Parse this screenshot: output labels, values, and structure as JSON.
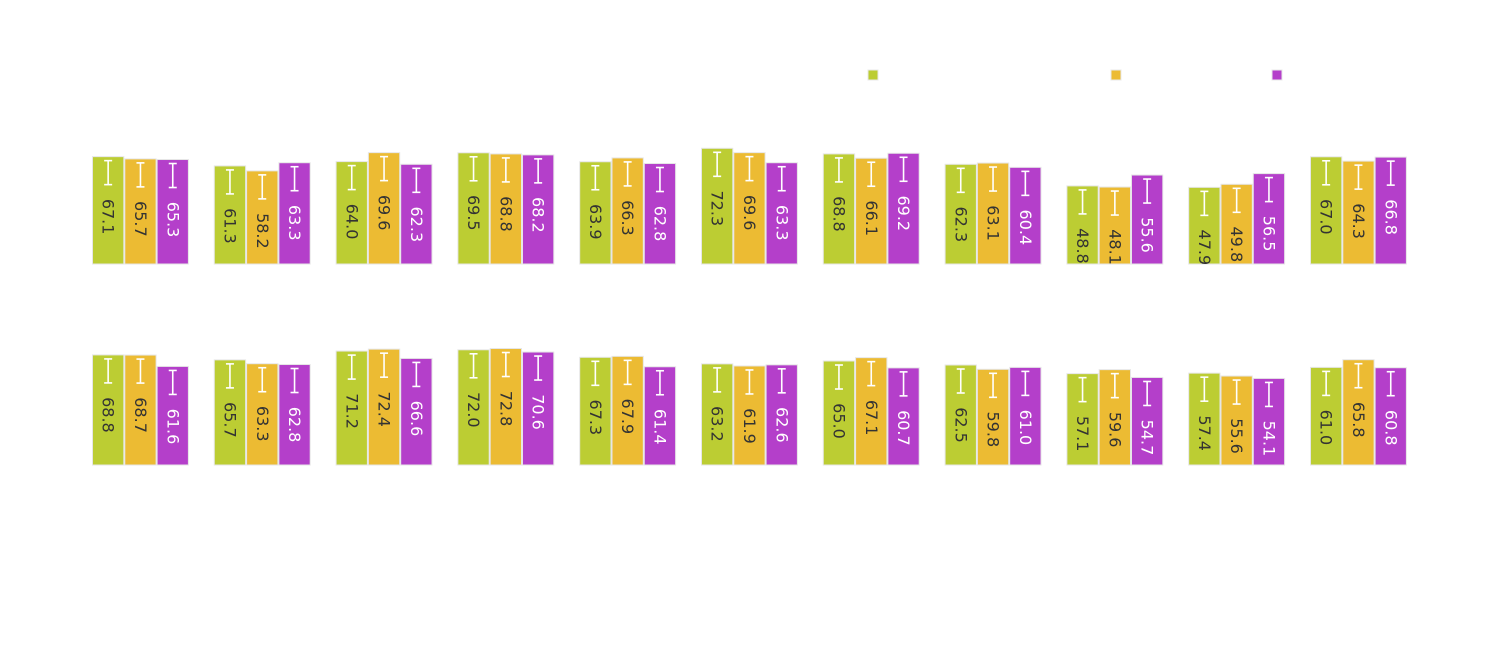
{
  "chart_data": {
    "type": "bar",
    "title": "",
    "xlabel": "",
    "ylabel": "",
    "legend": {
      "placement": "top-right",
      "entries": [
        {
          "name": "",
          "color": "#bccd33"
        },
        {
          "name": "",
          "color": "#ecbb33"
        },
        {
          "name": "",
          "color": "#b43fca"
        }
      ]
    },
    "grid": false,
    "colors": [
      "#bccd33",
      "#ecbb33",
      "#b43fca"
    ],
    "panels": [
      {
        "groups": [
          [
            67.1,
            65.7,
            65.3
          ],
          [
            61.3,
            58.2,
            63.3
          ],
          [
            64.0,
            69.6,
            62.3
          ],
          [
            69.5,
            68.8,
            68.2
          ],
          [
            63.9,
            66.3,
            62.8
          ],
          [
            72.3,
            69.6,
            63.3
          ],
          [
            68.8,
            66.1,
            69.2
          ],
          [
            62.3,
            63.1,
            60.4
          ],
          [
            48.8,
            48.1,
            55.6
          ],
          [
            47.9,
            49.8,
            56.5
          ],
          [
            67.0,
            64.3,
            66.8
          ]
        ],
        "labels": [
          [
            "67.1",
            "65.7",
            "65.3"
          ],
          [
            "61.3",
            "58.2",
            "63.3"
          ],
          [
            "64.0",
            "69.6",
            "62.3"
          ],
          [
            "69.5",
            "68.8",
            "68.2"
          ],
          [
            "63.9",
            "66.3",
            "62.8"
          ],
          [
            "72.3",
            "69.6",
            "63.3"
          ],
          [
            "68.8",
            "66.1",
            "69.2"
          ],
          [
            "62.3",
            "63.1",
            "60.4"
          ],
          [
            "48.8",
            "48.1",
            "55.6"
          ],
          [
            "47.9",
            "49.8",
            "56.5"
          ],
          [
            "67.0",
            "64.3",
            "66.8"
          ]
        ]
      },
      {
        "groups": [
          [
            68.8,
            68.7,
            61.6
          ],
          [
            65.7,
            63.3,
            62.8
          ],
          [
            71.2,
            72.4,
            66.6
          ],
          [
            72.0,
            72.8,
            70.6
          ],
          [
            67.3,
            67.9,
            61.4
          ],
          [
            63.2,
            61.9,
            62.6
          ],
          [
            65.0,
            67.1,
            60.7
          ],
          [
            62.5,
            59.8,
            61.0
          ],
          [
            57.1,
            59.6,
            54.7
          ],
          [
            57.4,
            55.6,
            54.1
          ],
          [
            61.0,
            65.8,
            60.8
          ]
        ],
        "labels": [
          [
            "68.8",
            "68.7",
            "61.6"
          ],
          [
            "65.7",
            "63.3",
            "62.8"
          ],
          [
            "71.2",
            "72.4",
            "66.6"
          ],
          [
            "72.0",
            "72.8",
            "70.6"
          ],
          [
            "67.3",
            "67.9",
            "61.4"
          ],
          [
            "63.2",
            "61.9",
            "62.6"
          ],
          [
            "65.0",
            "67.1",
            "60.7"
          ],
          [
            "62.5",
            "59.8",
            "61.0"
          ],
          [
            "57.1",
            "59.6",
            "54.7"
          ],
          [
            "57.4",
            "55.6",
            "54.1"
          ],
          [
            "61.0",
            "65.8",
            "60.8"
          ]
        ]
      }
    ]
  }
}
